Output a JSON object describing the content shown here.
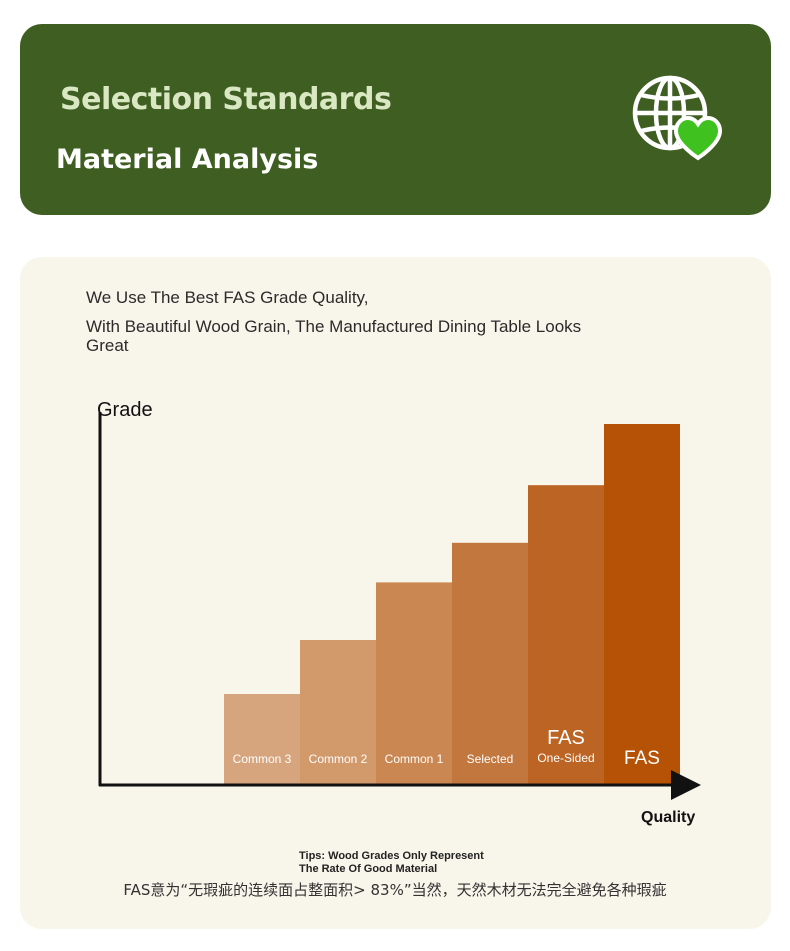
{
  "header": {
    "title": "Selection Standards",
    "subtitle": "Material Analysis",
    "icon": "globe-heart-icon",
    "background_color": "#3f5f22",
    "heart_color": "#3fc21f"
  },
  "intro": {
    "line1": "We Use The Best FAS Grade Quality,",
    "line2": "With Beautiful Wood Grain, The Manufactured Dining Table Looks Great"
  },
  "chart_data": {
    "type": "bar",
    "ylabel": "Grade",
    "xlabel": "Quality",
    "categories": [
      "Common 3",
      "Common 2",
      "Common 1",
      "Selected",
      "FAS One-Sided",
      "FAS"
    ],
    "category_labels": [
      {
        "line1": "Common 3",
        "line2": ""
      },
      {
        "line1": "Common 2",
        "line2": ""
      },
      {
        "line1": "Common 1",
        "line2": ""
      },
      {
        "line1": "Selected",
        "line2": ""
      },
      {
        "line1": "FAS",
        "line2": "One-Sided"
      },
      {
        "line1": "FAS",
        "line2": ""
      }
    ],
    "values": [
      1,
      2,
      3,
      4,
      5,
      6
    ],
    "relative_heights": [
      0.25,
      0.4,
      0.56,
      0.67,
      0.83,
      1.0
    ],
    "colors": [
      "#d6a57e",
      "#d2996b",
      "#cb8751",
      "#c2773f",
      "#bc6423",
      "#b65205"
    ],
    "grid": false
  },
  "tips": {
    "line1": "Tips: Wood Grades Only Represent",
    "line2": "The Rate Of Good Material"
  },
  "footnote": "FAS意为“无瑕疵的连续面占整面积> 83%”当然，天然木材无法完全避免各种瑕疵"
}
